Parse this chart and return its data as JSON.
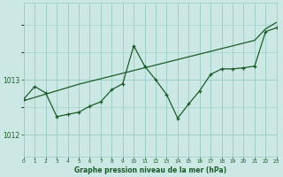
{
  "xlabel": "Graphe pression niveau de la mer (hPa)",
  "ylim": [
    1011.6,
    1014.4
  ],
  "yticks": [
    1012,
    1013
  ],
  "bg_color": "#cce8e4",
  "grid_color": "#99ccc6",
  "line_color": "#1a5c28",
  "trend_line": [
    1012.62,
    1012.68,
    1012.74,
    1012.8,
    1012.86,
    1012.92,
    1012.97,
    1013.02,
    1013.07,
    1013.12,
    1013.17,
    1013.22,
    1013.27,
    1013.32,
    1013.37,
    1013.42,
    1013.47,
    1013.52,
    1013.57,
    1013.62,
    1013.67,
    1013.72,
    1013.93,
    1014.05
  ],
  "detail_line": [
    1012.65,
    1012.88,
    1012.76,
    1012.33,
    1012.37,
    1012.41,
    1012.52,
    1012.6,
    1012.82,
    1012.93,
    1013.62,
    1013.25,
    1013.0,
    1012.73,
    1012.3,
    1012.56,
    1012.8,
    1013.1,
    1013.2,
    1013.2,
    1013.22,
    1013.25,
    1013.88,
    1013.95
  ]
}
